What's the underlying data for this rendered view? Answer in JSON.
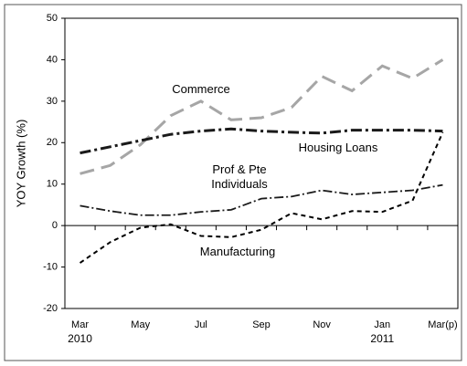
{
  "chart_data": {
    "type": "line",
    "ylabel": "YOY Growth (%)",
    "categories": [
      "Mar",
      null,
      "May",
      null,
      "Jul",
      null,
      "Sep",
      null,
      "Nov",
      null,
      "Jan",
      null,
      "Mar(p)"
    ],
    "year_labels": [
      "2010",
      null,
      null,
      null,
      null,
      null,
      null,
      null,
      null,
      null,
      "2011",
      null,
      null
    ],
    "series": [
      {
        "name": "Commerce",
        "color": "#a6a6a6",
        "values": [
          12.5,
          14.5,
          19.5,
          26.5,
          30,
          25.5,
          26,
          28.5,
          36,
          32.5,
          38.5,
          35.5,
          40
        ]
      },
      {
        "name": "Housing Loans",
        "color": "#1a1a1a",
        "values": [
          17.5,
          19,
          20.5,
          22,
          22.8,
          23.3,
          22.8,
          22.5,
          22.3,
          23,
          23,
          23,
          22.8
        ]
      },
      {
        "name": "Prof & Pte Individuals",
        "color": "#1a1a1a",
        "values": [
          4.8,
          3.5,
          2.5,
          2.5,
          3.3,
          3.8,
          6.5,
          7,
          8.5,
          7.5,
          8,
          8.5,
          9.8
        ]
      },
      {
        "name": "Manufacturing",
        "color": "#000000",
        "values": [
          -9,
          -4,
          -0.5,
          0.3,
          -2.5,
          -2.8,
          -1,
          3,
          1.5,
          3.5,
          3.3,
          6,
          22.5
        ]
      }
    ],
    "ylim": [
      -20,
      50
    ],
    "yticks": [
      -20,
      -10,
      0,
      10,
      20,
      30,
      40,
      50
    ],
    "grid": false
  }
}
